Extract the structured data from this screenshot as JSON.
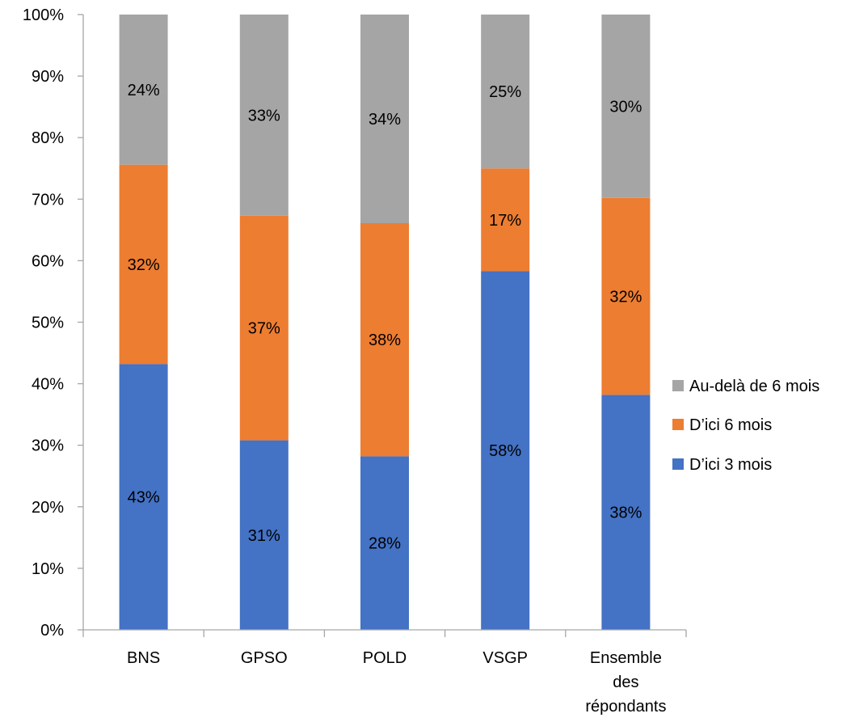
{
  "chart_data": {
    "type": "bar",
    "stacked": true,
    "normalized": true,
    "categories": [
      [
        "BNS"
      ],
      [
        "GPSO"
      ],
      [
        "POLD"
      ],
      [
        "VSGP"
      ],
      [
        "Ensemble",
        "des",
        "répondants"
      ]
    ],
    "series": [
      {
        "name": "D’ici 3 mois",
        "values": [
          43.2,
          30.8,
          28.2,
          58.3,
          38.2
        ],
        "labels": [
          "43%",
          "31%",
          "28%",
          "58%",
          "38%"
        ],
        "color": "#4472C4"
      },
      {
        "name": "D’ici 6 mois",
        "values": [
          32.4,
          36.5,
          37.9,
          16.7,
          32.0
        ],
        "labels": [
          "32%",
          "37%",
          "38%",
          "17%",
          "32%"
        ],
        "color": "#ED7D31"
      },
      {
        "name": "Au-delà de 6 mois",
        "values": [
          24.4,
          32.7,
          33.9,
          25.0,
          29.8
        ],
        "labels": [
          "24%",
          "33%",
          "34%",
          "25%",
          "30%"
        ],
        "color": "#A5A5A5"
      }
    ],
    "yticks": [
      "0%",
      "10%",
      "20%",
      "30%",
      "40%",
      "50%",
      "60%",
      "70%",
      "80%",
      "90%",
      "100%"
    ],
    "ylim": [
      0,
      100
    ],
    "grid": false,
    "legend_position": "right",
    "legend_order": [
      "Au-delà de 6 mois",
      "D’ici 6 mois",
      "D’ici 3 mois"
    ]
  }
}
